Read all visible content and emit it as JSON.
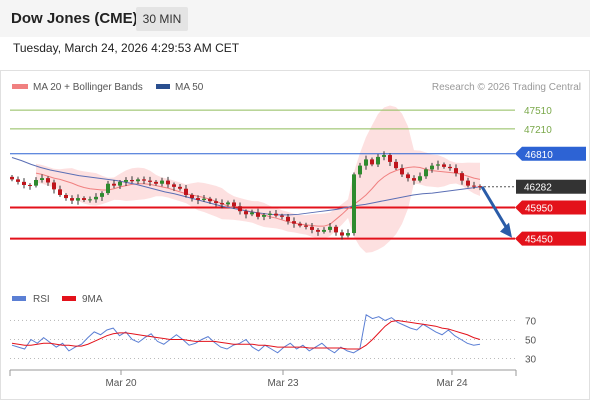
{
  "header": {
    "title": "Dow Jones (CME)",
    "timeframe": "30 MIN",
    "timestamp": "Tuesday, March 24, 2026 4:29:53 AM CET"
  },
  "legend": {
    "bollinger_label": "MA 20 + Bollinger Bands",
    "ma50_label": "MA 50",
    "copyright": "Research © 2026 Trading Central"
  },
  "chart_data": [
    {
      "type": "candlestick",
      "title": "Dow Jones (CME)",
      "timeframe": "30 MIN",
      "x_ticks": [
        "Mar 20",
        "Mar 23",
        "Mar 24"
      ],
      "ylim": [
        45220,
        47720
      ],
      "levels": [
        {
          "label": "47510",
          "value": 47510,
          "kind": "resistance",
          "color": "#8fbc5a"
        },
        {
          "label": "47210",
          "value": 47210,
          "kind": "resistance",
          "color": "#8fbc5a"
        },
        {
          "label": "46810",
          "value": 46810,
          "kind": "pivot",
          "color": "#2d63d4"
        },
        {
          "label": "46282",
          "value": 46282,
          "kind": "last",
          "color": "#333333"
        },
        {
          "label": "45950",
          "value": 45950,
          "kind": "support",
          "color": "#e3121b"
        },
        {
          "label": "45450",
          "value": 45450,
          "kind": "support",
          "color": "#e3121b"
        }
      ],
      "last_price": 46282,
      "forecast_arrow": {
        "from": 46282,
        "to": 45450,
        "color": "#2a5ca8"
      },
      "candle_colors": {
        "up": "#2e8b2e",
        "down": "#c0151c"
      },
      "bollinger_fill": "#fcd6d6",
      "ma20_color": "#f08080",
      "ma50_color": "#5b6fb5",
      "series": [
        {
          "name": "Close",
          "values": [
            46400,
            46360,
            46310,
            46300,
            46390,
            46420,
            46350,
            46240,
            46150,
            46100,
            46060,
            46100,
            46070,
            46080,
            46120,
            46180,
            46330,
            46300,
            46360,
            46390,
            46370,
            46400,
            46380,
            46360,
            46330,
            46380,
            46320,
            46280,
            46250,
            46150,
            46100,
            46070,
            46090,
            46050,
            46020,
            46000,
            46030,
            45970,
            45890,
            45840,
            45870,
            45800,
            45830,
            45850,
            45820,
            45800,
            45730,
            45690,
            45660,
            45640,
            45590,
            45560,
            45590,
            45640,
            45550,
            45500,
            45540,
            46480,
            46620,
            46720,
            46640,
            46760,
            46790,
            46680,
            46580,
            46480,
            46420,
            46380,
            46450,
            46560,
            46620,
            46640,
            46600,
            46580,
            46500,
            46380,
            46300,
            46290,
            46282
          ]
        },
        {
          "name": "MA 20",
          "values": [
            46500,
            46480,
            46450,
            46420,
            46400,
            46370,
            46340,
            46300,
            46270,
            46250,
            46240,
            46230,
            46230,
            46250,
            46280,
            46300,
            46320,
            46330,
            46330,
            46320,
            46300,
            46280,
            46260,
            46230,
            46200,
            46170,
            46150,
            46130,
            46110,
            46080,
            46050,
            46010,
            45970,
            45940,
            45920,
            45900,
            45880,
            45860,
            45830,
            45800,
            45780,
            45750,
            45720,
            45700,
            45680,
            45670,
            45660,
            45650,
            45650,
            45680,
            45760,
            45840,
            45930,
            46000,
            46070,
            46150,
            46250,
            46360,
            46440,
            46500,
            46540,
            46570,
            46590,
            46600,
            46590,
            46560,
            46540,
            46530,
            46520,
            46510,
            46500,
            46480,
            46450,
            46420,
            46400
          ]
        },
        {
          "name": "MA 50",
          "values": [
            46750,
            46700,
            46640,
            46590,
            46550,
            46520,
            46490,
            46460,
            46440,
            46420,
            46400,
            46380,
            46350,
            46320,
            46280,
            46240,
            46200,
            46170,
            46130,
            46090,
            46050,
            46010,
            45970,
            45940,
            45910,
            45880,
            45860,
            45840,
            45830,
            45830,
            45840,
            45860,
            45880,
            45900,
            45920,
            45950,
            45980,
            46000,
            46030,
            46060,
            46090,
            46120,
            46150,
            46170,
            46180,
            46200,
            46220,
            46240,
            46260,
            46282
          ]
        }
      ]
    },
    {
      "type": "line",
      "title": "RSI",
      "legend": [
        "RSI",
        "9MA"
      ],
      "y_ticks": [
        70,
        50,
        30
      ],
      "ylim": [
        20,
        80
      ],
      "colors": {
        "RSI": "#5b7fd4",
        "9MA": "#e3121b"
      },
      "series": [
        {
          "name": "RSI",
          "values": [
            44,
            42,
            40,
            50,
            46,
            52,
            47,
            42,
            46,
            38,
            42,
            45,
            52,
            58,
            55,
            60,
            62,
            54,
            58,
            50,
            47,
            52,
            56,
            48,
            45,
            50,
            55,
            50,
            44,
            46,
            50,
            53,
            47,
            42,
            40,
            44,
            46,
            50,
            42,
            38,
            44,
            40,
            36,
            42,
            46,
            40,
            44,
            38,
            42,
            46,
            40,
            36,
            42,
            38,
            36,
            40,
            76,
            72,
            74,
            70,
            73,
            68,
            65,
            62,
            60,
            66,
            62,
            58,
            55,
            60,
            54,
            50,
            46,
            44,
            45
          ]
        },
        {
          "name": "9MA",
          "values": [
            46,
            45,
            44,
            44,
            45,
            46,
            46,
            45,
            44,
            44,
            43,
            43,
            45,
            48,
            51,
            54,
            56,
            57,
            57,
            56,
            55,
            54,
            53,
            52,
            51,
            50,
            50,
            50,
            49,
            48,
            48,
            48,
            48,
            47,
            46,
            45,
            45,
            45,
            45,
            44,
            44,
            43,
            42,
            42,
            42,
            42,
            42,
            41,
            41,
            41,
            41,
            41,
            41,
            40,
            40,
            40,
            44,
            50,
            57,
            64,
            69,
            70,
            69,
            68,
            67,
            66,
            65,
            64,
            62,
            61,
            59,
            57,
            55,
            52,
            50
          ]
        }
      ]
    }
  ]
}
